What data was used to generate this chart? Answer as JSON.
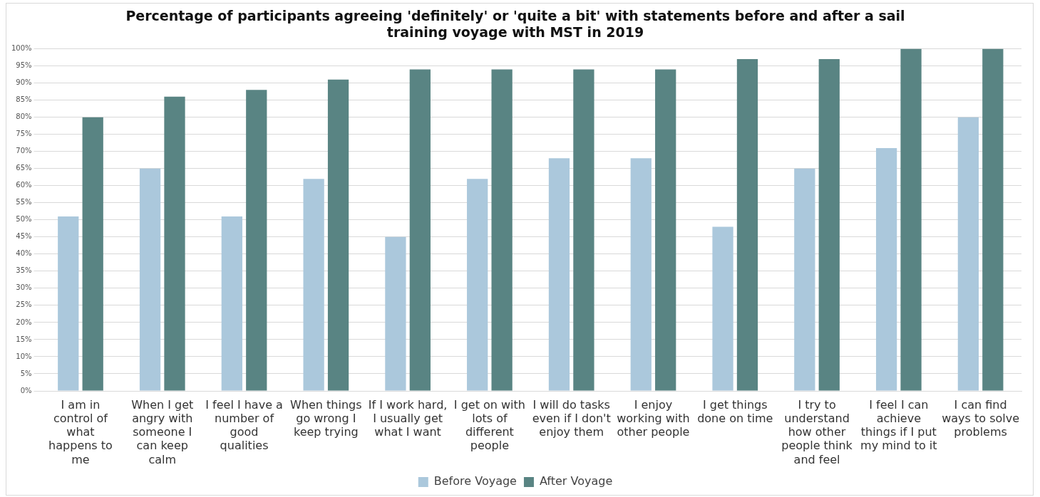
{
  "chart_data": {
    "type": "bar",
    "title": "Percentage of participants agreeing 'definitely' or 'quite a bit' with statements before and after a sail training voyage with MST in 2019",
    "categories": [
      "I am in control of what happens to me",
      "When I get angry with someone I can keep calm",
      "I feel I have a number of good qualities",
      "When things go wrong I keep trying",
      "If I work hard, I usually get what I want",
      "I get on with lots of different people",
      "I will do tasks even if I don't enjoy them",
      "I enjoy working with other people",
      "I get things done on time",
      "I try to understand how other people think and feel",
      "I feel I can achieve things if I put my mind to it",
      "I can find ways to solve problems"
    ],
    "series": [
      {
        "name": "Before Voyage",
        "color": "#abc8dc",
        "values": [
          51,
          65,
          51,
          62,
          45,
          62,
          68,
          68,
          48,
          65,
          71,
          80
        ]
      },
      {
        "name": "After Voyage",
        "color": "#598483",
        "values": [
          80,
          86,
          88,
          91,
          94,
          94,
          94,
          94,
          97,
          97,
          100,
          100
        ]
      }
    ],
    "ylim": [
      0,
      100
    ],
    "yticks": [
      {
        "value": 0,
        "label": "0%"
      },
      {
        "value": 5,
        "label": "5%"
      },
      {
        "value": 10,
        "label": "10%"
      },
      {
        "value": 15,
        "label": "15%"
      },
      {
        "value": 20,
        "label": "20%"
      },
      {
        "value": 25,
        "label": "25%"
      },
      {
        "value": 30,
        "label": "30%"
      },
      {
        "value": 35,
        "label": "35%"
      },
      {
        "value": 40,
        "label": "40%"
      },
      {
        "value": 45,
        "label": "45%"
      },
      {
        "value": 50,
        "label": "50%"
      },
      {
        "value": 55,
        "label": "55%"
      },
      {
        "value": 60,
        "label": "60%"
      },
      {
        "value": 65,
        "label": "65%"
      },
      {
        "value": 70,
        "label": "70%"
      },
      {
        "value": 75,
        "label": "75%"
      },
      {
        "value": 80,
        "label": "80%"
      },
      {
        "value": 85,
        "label": "85%"
      },
      {
        "value": 90,
        "label": "90%"
      },
      {
        "value": 95,
        "label": "95%"
      },
      {
        "value": 100,
        "label": "100%"
      }
    ],
    "grid": "y",
    "legend": "bottom"
  }
}
